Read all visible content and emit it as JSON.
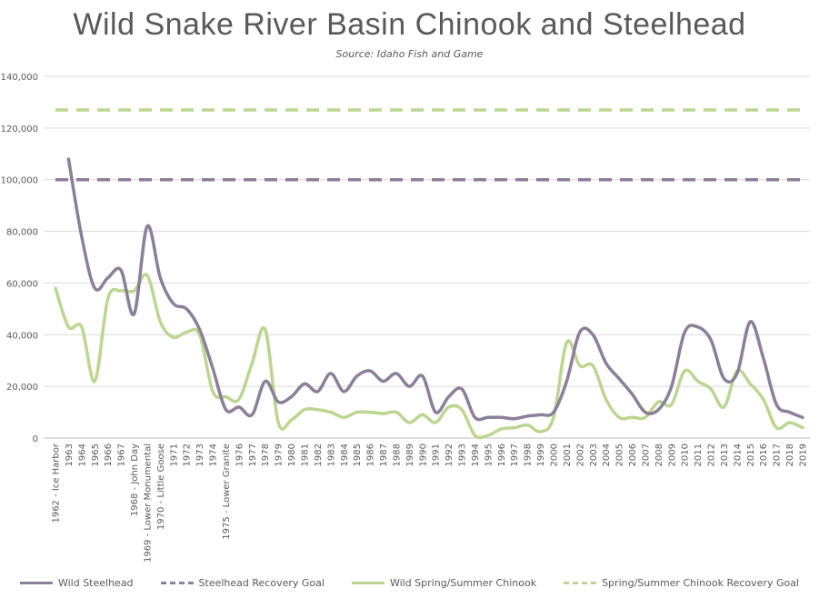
{
  "chart_data": {
    "type": "line",
    "title": "Wild Snake River Basin Chinook and Steelhead",
    "subtitle": "Source: Idaho Fish and Game",
    "xlabel": "",
    "ylabel": "",
    "ylim": [
      0,
      140000
    ],
    "yticks": [
      0,
      20000,
      40000,
      60000,
      80000,
      100000,
      120000,
      140000
    ],
    "ytick_labels": [
      "0",
      "20,000",
      "40,000",
      "60,000",
      "80,000",
      "100,000",
      "120,000",
      "140,000"
    ],
    "grid": "horizontal",
    "legend_position": "bottom",
    "categories": [
      "1962 - Ice Harbor",
      "1963",
      "1964",
      "1965",
      "1966",
      "1967",
      "1968 - John Day",
      "1969 - Lower Monumental",
      "1970 - Little Goose",
      "1971",
      "1972",
      "1973",
      "1974",
      "1975 - Lower Granite",
      "1976",
      "1977",
      "1978",
      "1979",
      "1980",
      "1981",
      "1982",
      "1983",
      "1984",
      "1985",
      "1986",
      "1987",
      "1988",
      "1989",
      "1990",
      "1991",
      "1992",
      "1993",
      "1994",
      "1995",
      "1996",
      "1997",
      "1998",
      "1999",
      "2000",
      "2001",
      "2002",
      "2003",
      "2004",
      "2005",
      "2006",
      "2007",
      "2008",
      "2009",
      "2010",
      "2011",
      "2012",
      "2013",
      "2014",
      "2015",
      "2016",
      "2017",
      "2018",
      "2019"
    ],
    "series": [
      {
        "name": "Wild Steelhead",
        "color": "#8c7f99",
        "style": "solid",
        "values": [
          null,
          108000,
          78000,
          58000,
          62000,
          65000,
          48000,
          82000,
          62000,
          52000,
          50000,
          42000,
          27000,
          11000,
          12000,
          9000,
          22000,
          14000,
          16000,
          21000,
          18000,
          25000,
          18000,
          24000,
          26000,
          22000,
          25000,
          20000,
          24000,
          10000,
          16000,
          19000,
          8000,
          8000,
          8000,
          7500,
          8500,
          9000,
          10000,
          22000,
          41000,
          40000,
          29000,
          23000,
          17000,
          10000,
          11000,
          20000,
          41000,
          43000,
          38000,
          23000,
          25000,
          45000,
          31000,
          13000,
          10000,
          8000
        ]
      },
      {
        "name": "Steelhead Recovery Goal",
        "color": "#8c7f99",
        "style": "dashed",
        "values": [
          100000,
          100000,
          100000,
          100000,
          100000,
          100000,
          100000,
          100000,
          100000,
          100000,
          100000,
          100000,
          100000,
          100000,
          100000,
          100000,
          100000,
          100000,
          100000,
          100000,
          100000,
          100000,
          100000,
          100000,
          100000,
          100000,
          100000,
          100000,
          100000,
          100000,
          100000,
          100000,
          100000,
          100000,
          100000,
          100000,
          100000,
          100000,
          100000,
          100000,
          100000,
          100000,
          100000,
          100000,
          100000,
          100000,
          100000,
          100000,
          100000,
          100000,
          100000,
          100000,
          100000,
          100000,
          100000,
          100000,
          100000,
          100000
        ]
      },
      {
        "name": "Wild Spring/Summer Chinook",
        "color": "#bcd692",
        "style": "solid",
        "values": [
          58000,
          43000,
          43000,
          22000,
          54000,
          57000,
          57000,
          63000,
          45000,
          39000,
          41000,
          40000,
          18000,
          16000,
          15000,
          29000,
          42000,
          6000,
          7000,
          11000,
          11000,
          10000,
          8000,
          10000,
          10000,
          9500,
          10000,
          6000,
          9000,
          6000,
          12000,
          11000,
          1000,
          1000,
          3500,
          4000,
          5000,
          2500,
          8000,
          37000,
          28000,
          28000,
          15000,
          8000,
          8000,
          8000,
          14000,
          13000,
          26000,
          22000,
          19000,
          12000,
          26000,
          21000,
          15000,
          4000,
          6000,
          4000
        ]
      },
      {
        "name": "Spring/Summer Chinook Recovery Goal",
        "color": "#bcd692",
        "style": "dashed",
        "values": [
          127000,
          127000,
          127000,
          127000,
          127000,
          127000,
          127000,
          127000,
          127000,
          127000,
          127000,
          127000,
          127000,
          127000,
          127000,
          127000,
          127000,
          127000,
          127000,
          127000,
          127000,
          127000,
          127000,
          127000,
          127000,
          127000,
          127000,
          127000,
          127000,
          127000,
          127000,
          127000,
          127000,
          127000,
          127000,
          127000,
          127000,
          127000,
          127000,
          127000,
          127000,
          127000,
          127000,
          127000,
          127000,
          127000,
          127000,
          127000,
          127000,
          127000,
          127000,
          127000,
          127000,
          127000,
          127000,
          127000,
          127000,
          127000
        ]
      }
    ]
  }
}
